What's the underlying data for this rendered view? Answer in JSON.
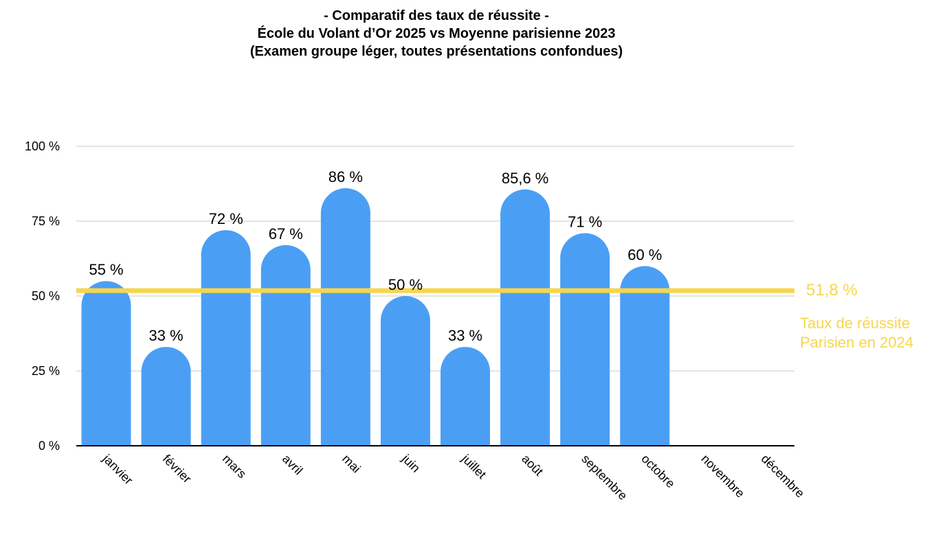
{
  "title_lines": [
    "- Comparatif des taux de réussite -",
    "École du Volant d’Or 2025 vs Moyenne parisienne 2023",
    "(Examen groupe léger, toutes présentations confondues)"
  ],
  "colors": {
    "bar": "#4a9ff5",
    "reference": "#f6d64f",
    "grid": "#c8c8c8",
    "axis": "#000000"
  },
  "chart_data": {
    "type": "bar",
    "title": "- Comparatif des taux de réussite - École du Volant d’Or 2025 vs Moyenne parisienne 2023 (Examen groupe léger, toutes présentations confondues)",
    "categories": [
      "janvier",
      "février",
      "mars",
      "avril",
      "mai",
      "juin",
      "juillet",
      "août",
      "septembre",
      "octobre",
      "novembre",
      "décembre"
    ],
    "values": [
      55,
      33,
      72,
      67,
      86,
      50,
      33,
      85.6,
      71,
      60,
      null,
      null
    ],
    "data_labels": [
      "55 %",
      "33 %",
      "72 %",
      "67 %",
      "86 %",
      "50 %",
      "33 %",
      "85,6 %",
      "71 %",
      "60 %",
      "",
      ""
    ],
    "ylim": [
      0,
      100
    ],
    "y_ticks": [
      0,
      25,
      50,
      75,
      100
    ],
    "y_tick_labels": [
      "0 %",
      "25 %",
      "50 %",
      "75 %",
      "100 %"
    ],
    "grid": true,
    "reference_line": {
      "value": 51.8,
      "label": "51,8 %",
      "caption": [
        "Taux de réussite",
        "Parisien en 2024"
      ]
    }
  }
}
